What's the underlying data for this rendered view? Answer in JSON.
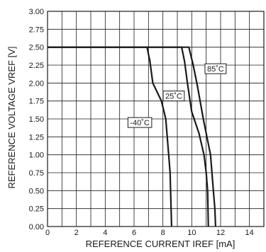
{
  "chart_data": {
    "type": "line",
    "title": "",
    "xlabel": "REFERENCE CURRENT IREF [mA]",
    "ylabel": "REFERENCE VOLTAGE VREF [V]",
    "xlim": [
      0,
      15
    ],
    "ylim": [
      0,
      3
    ],
    "x_ticks": [
      0,
      2,
      4,
      6,
      8,
      10,
      12,
      14
    ],
    "x_tick_labels": [
      "0",
      "2",
      "4",
      "6",
      "8",
      "10",
      "12",
      "14"
    ],
    "y_ticks": [
      0,
      0.25,
      0.5,
      0.75,
      1.0,
      1.25,
      1.5,
      1.75,
      2.0,
      2.25,
      2.5,
      2.75,
      3.0
    ],
    "y_tick_labels": [
      "0.00",
      "0.25",
      "0.50",
      "0.75",
      "1.00",
      "1.25",
      "1.50",
      "1.75",
      "2.00",
      "2.25",
      "2.50",
      "2.75",
      "3.00"
    ],
    "minor_grid_x": [
      1,
      3,
      5,
      7,
      9,
      11,
      13
    ],
    "grid": true,
    "legend": "none",
    "line_color": "#1a1a1a",
    "series": [
      {
        "name": "-40˚C",
        "x": [
          0,
          6.9,
          7.1,
          7.3,
          7.9,
          8.2,
          8.4,
          8.5,
          8.6
        ],
        "y": [
          2.5,
          2.5,
          2.3,
          2.0,
          1.75,
          1.5,
          1.0,
          0.75,
          0.0
        ]
      },
      {
        "name": "25˚C",
        "x": [
          0,
          9.3,
          9.5,
          9.7,
          10.0,
          10.5,
          10.85,
          11.0,
          11.1,
          11.15
        ],
        "y": [
          2.5,
          2.5,
          2.3,
          2.0,
          1.6,
          1.3,
          1.0,
          0.75,
          0.5,
          0.0
        ]
      },
      {
        "name": "85˚C",
        "x": [
          0,
          9.8,
          10.1,
          10.4,
          10.8,
          11.3,
          11.5,
          11.6,
          11.65
        ],
        "y": [
          2.5,
          2.5,
          2.25,
          1.95,
          1.5,
          1.0,
          0.5,
          0.25,
          0.0
        ]
      }
    ],
    "annotations": [
      {
        "text": "85˚C",
        "x": 11.65,
        "y": 2.2
      },
      {
        "text": "25˚C",
        "x": 8.75,
        "y": 1.82
      },
      {
        "text": "-40˚C",
        "x": 6.4,
        "y": 1.45
      }
    ]
  }
}
